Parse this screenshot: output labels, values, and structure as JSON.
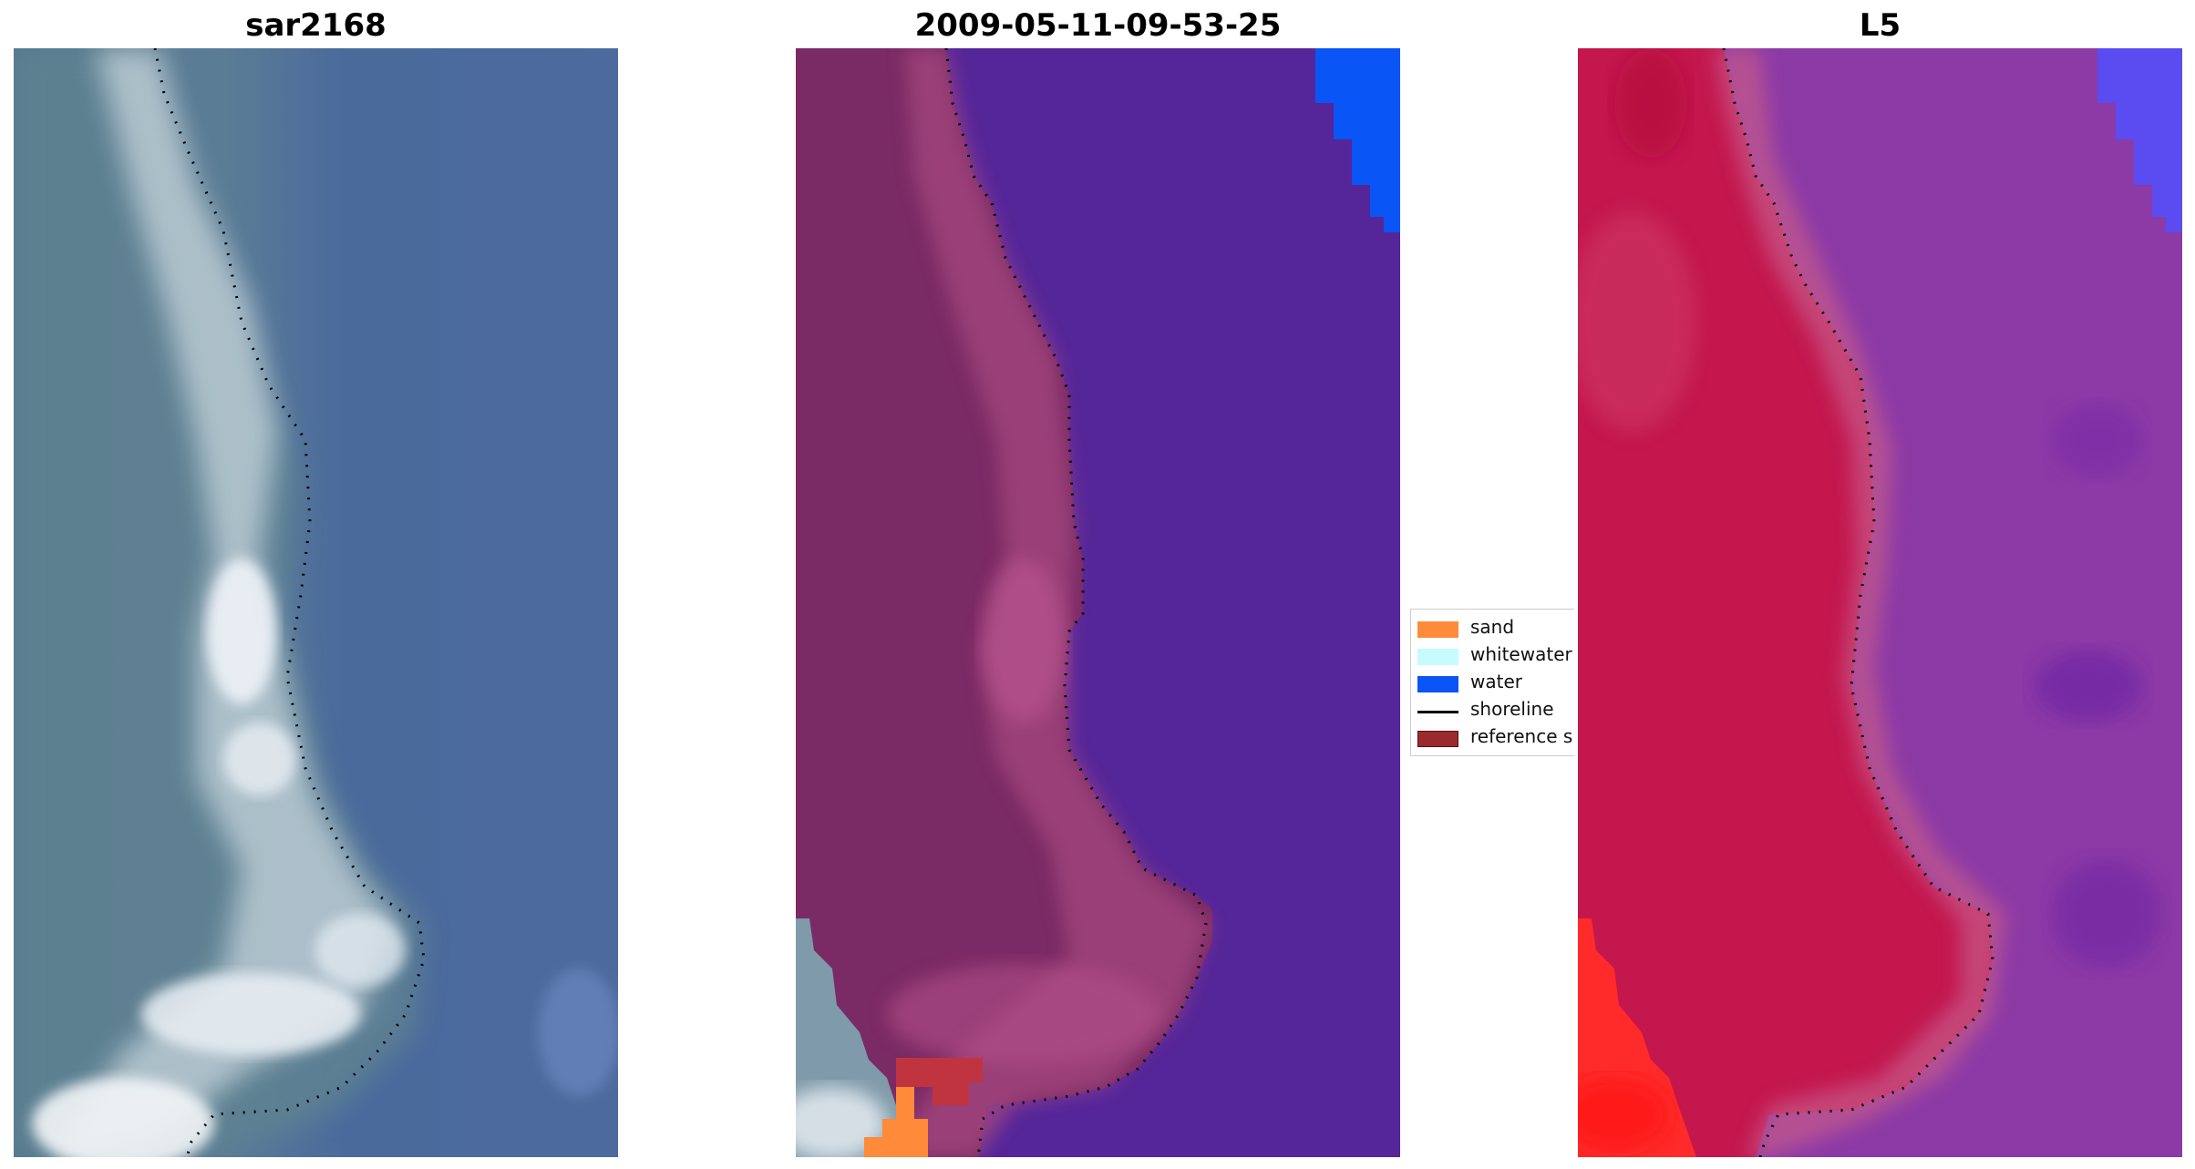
{
  "panels": [
    {
      "title": "sar2168"
    },
    {
      "title": "2009-05-11-09-53-25"
    },
    {
      "title": "L5"
    }
  ],
  "legend": {
    "items": [
      {
        "label": "sand",
        "color": "#ff8a3a"
      },
      {
        "label": "whitewater",
        "color": "#c6fcff"
      },
      {
        "label": "water",
        "color": "#0a55f5"
      },
      {
        "label": "shoreline",
        "color": "#000000"
      },
      {
        "label": "reference shoreline",
        "color": "#9a2a2e"
      }
    ]
  },
  "colors": {
    "sar_water": "#4a6a9c",
    "sar_land": "#5f8292",
    "sar_white": "#e8eef4",
    "class_land": "#7a2a64",
    "class_land_light": "#a5477f",
    "class_ocean": "#552699",
    "class_water_patch": "#0a55f5",
    "l5_land": "#c3174e",
    "l5_ocean": "#8c3aa6",
    "l5_bright": "#ff2a2a",
    "l5_water_patch": "#5a4cf0"
  }
}
